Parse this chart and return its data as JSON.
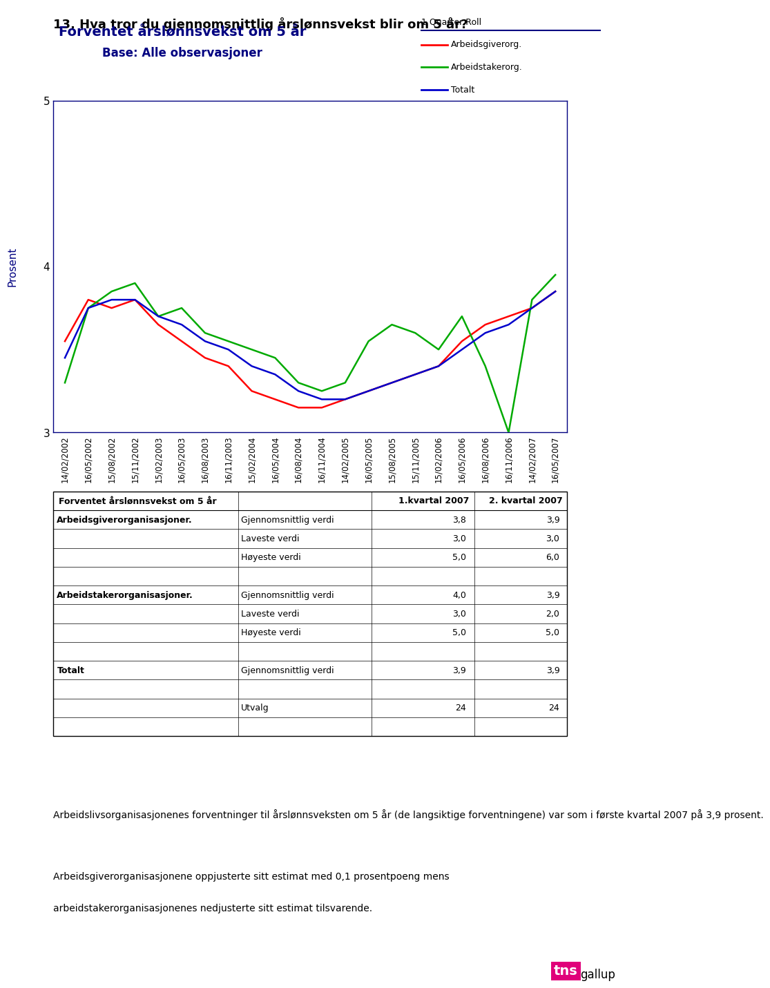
{
  "question": "13. Hva tror du gjennomsnittlig årslønnsvekst blir om 5 år?",
  "chart_title": "Forventet årslønnsvekst om 5 år",
  "chart_subtitle": "Base: Alle observasjoner",
  "ylabel": "Prosent",
  "legend_title": "1 Quarter Roll",
  "legend_items": [
    "Arbeidsgiverorg.",
    "Arbeidstakerorg.",
    "Totalt"
  ],
  "legend_colors": [
    "#ff0000",
    "#00aa00",
    "#0000cc"
  ],
  "x_labels": [
    "14/02/2002",
    "16/05/2002",
    "15/08/2002",
    "15/11/2002",
    "15/02/2003",
    "16/05/2003",
    "16/08/2003",
    "16/11/2003",
    "15/02/2004",
    "16/05/2004",
    "16/08/2004",
    "16/11/2004",
    "14/02/2005",
    "16/05/2005",
    "15/08/2005",
    "15/11/2005",
    "15/02/2006",
    "16/05/2006",
    "16/08/2006",
    "16/11/2006",
    "14/02/2007",
    "16/05/2007"
  ],
  "series_red": [
    3.55,
    3.8,
    3.75,
    3.8,
    3.65,
    3.55,
    3.45,
    3.4,
    3.25,
    3.2,
    3.15,
    3.15,
    3.2,
    3.25,
    3.3,
    3.35,
    3.4,
    3.55,
    3.65,
    3.7,
    3.75,
    3.85
  ],
  "series_green": [
    3.3,
    3.75,
    3.85,
    3.9,
    3.7,
    3.75,
    3.6,
    3.55,
    3.5,
    3.45,
    3.3,
    3.25,
    3.3,
    3.55,
    3.65,
    3.6,
    3.5,
    3.7,
    3.4,
    3.0,
    3.8,
    3.95
  ],
  "series_blue": [
    3.45,
    3.75,
    3.8,
    3.8,
    3.7,
    3.65,
    3.55,
    3.5,
    3.4,
    3.35,
    3.25,
    3.2,
    3.2,
    3.25,
    3.3,
    3.35,
    3.4,
    3.5,
    3.6,
    3.65,
    3.75,
    3.85
  ],
  "ylim": [
    3.0,
    5.0
  ],
  "yticks": [
    3,
    4,
    5
  ],
  "table_title": "Forventet årslønnsvekst om 5 år",
  "col_headers": [
    "",
    "",
    "1.kvartal 2007",
    "2. kvartal 2007"
  ],
  "table_rows": [
    [
      "Arbeidsgiverorganisasjoner.",
      "Gjennomsnittlig verdi",
      "3,8",
      "3,9"
    ],
    [
      "",
      "Laveste verdi",
      "3,0",
      "3,0"
    ],
    [
      "",
      "Høyeste verdi",
      "5,0",
      "6,0"
    ],
    [
      "",
      "",
      "",
      ""
    ],
    [
      "Arbeidstakerorganisasjoner.",
      "Gjennomsnittlig verdi",
      "4,0",
      "3,9"
    ],
    [
      "",
      "Laveste verdi",
      "3,0",
      "2,0"
    ],
    [
      "",
      "Høyeste verdi",
      "5,0",
      "5,0"
    ],
    [
      "",
      "",
      "",
      ""
    ],
    [
      "Totalt",
      "Gjennomsnittlig verdi",
      "3,9",
      "3,9"
    ],
    [
      "",
      "",
      "",
      ""
    ],
    [
      "",
      "Utvalg",
      "24",
      "24"
    ]
  ],
  "footnote1": "Arbeidslivsorganisasjonenes forventninger til årslønnsveksten om 5 år (de langsiktige",
  "footnote2": "forventningene) var som i første kvartal 2007 på 3,9 prosent.",
  "footnote3": "",
  "footnote4": "Arbeidsgiverorganisasjonene oppjusterte sitt estimat med 0,1 prosentpoeng mens",
  "footnote5": "arbeidstakerorganisasjonenes nedjusterte sitt estimat tilsvarende.",
  "bg_color": "#ffffff",
  "text_color": "#000080",
  "title_color": "#000080"
}
